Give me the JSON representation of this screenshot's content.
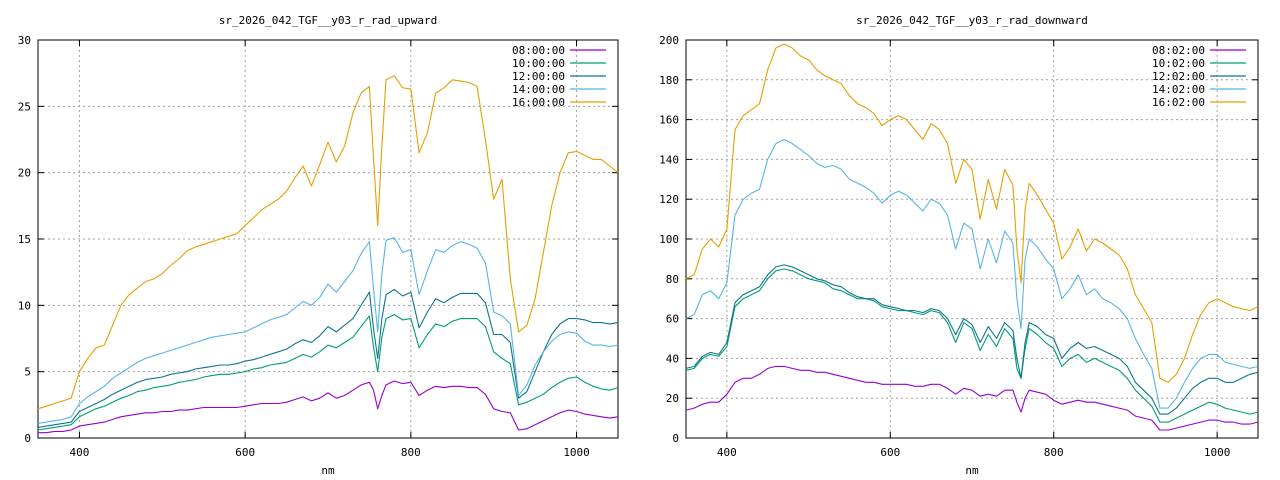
{
  "chart_data": [
    {
      "type": "line",
      "title": "sr_2026_042_TGF__y03_r_rad_upward",
      "xlabel": "nm",
      "ylabel": "",
      "xlim": [
        350,
        1050
      ],
      "ylim": [
        0,
        30
      ],
      "xticks": [
        400,
        600,
        800,
        1000
      ],
      "yticks": [
        0,
        5,
        10,
        15,
        20,
        25,
        30
      ],
      "grid": true,
      "legend_position": "top-right",
      "x": [
        350,
        360,
        370,
        380,
        390,
        400,
        410,
        420,
        430,
        440,
        450,
        460,
        470,
        480,
        490,
        500,
        510,
        520,
        530,
        540,
        550,
        560,
        570,
        580,
        590,
        600,
        610,
        620,
        630,
        640,
        650,
        660,
        670,
        680,
        690,
        700,
        710,
        720,
        730,
        740,
        750,
        755,
        760,
        765,
        770,
        780,
        790,
        800,
        810,
        820,
        830,
        840,
        850,
        860,
        870,
        880,
        890,
        900,
        910,
        920,
        930,
        940,
        950,
        960,
        970,
        980,
        990,
        1000,
        1010,
        1020,
        1030,
        1040,
        1050
      ],
      "series": [
        {
          "name": "08:00:00",
          "color": "#9400d3",
          "values": [
            0.4,
            0.4,
            0.5,
            0.5,
            0.6,
            0.9,
            1.0,
            1.1,
            1.2,
            1.4,
            1.6,
            1.7,
            1.8,
            1.9,
            1.9,
            2.0,
            2.0,
            2.1,
            2.1,
            2.2,
            2.3,
            2.3,
            2.3,
            2.3,
            2.3,
            2.4,
            2.5,
            2.6,
            2.6,
            2.6,
            2.7,
            2.9,
            3.1,
            2.8,
            3.0,
            3.4,
            3.0,
            3.2,
            3.6,
            4.0,
            4.2,
            3.6,
            2.2,
            3.2,
            4.0,
            4.3,
            4.1,
            4.2,
            3.2,
            3.6,
            3.9,
            3.8,
            3.9,
            3.9,
            3.8,
            3.8,
            3.3,
            2.2,
            2.0,
            1.9,
            0.6,
            0.7,
            1.0,
            1.3,
            1.6,
            1.9,
            2.1,
            2.0,
            1.8,
            1.7,
            1.6,
            1.5,
            1.6
          ]
        },
        {
          "name": "10:00:00",
          "color": "#009e73",
          "values": [
            0.6,
            0.7,
            0.8,
            0.9,
            1.0,
            1.6,
            1.9,
            2.2,
            2.4,
            2.7,
            3.0,
            3.2,
            3.5,
            3.6,
            3.8,
            3.9,
            4.0,
            4.2,
            4.3,
            4.4,
            4.6,
            4.7,
            4.8,
            4.8,
            4.9,
            5.0,
            5.2,
            5.3,
            5.5,
            5.6,
            5.7,
            6.0,
            6.3,
            6.1,
            6.5,
            7.0,
            6.8,
            7.2,
            7.6,
            8.4,
            9.2,
            6.8,
            5.0,
            7.6,
            9.0,
            9.3,
            8.9,
            9.0,
            6.8,
            7.8,
            8.6,
            8.4,
            8.8,
            9.0,
            9.0,
            9.0,
            8.4,
            6.5,
            6.0,
            5.6,
            2.5,
            2.7,
            3.0,
            3.3,
            3.8,
            4.2,
            4.5,
            4.6,
            4.2,
            3.9,
            3.7,
            3.6,
            3.8
          ]
        },
        {
          "name": "12:00:00",
          "color": "#0e7490",
          "values": [
            0.8,
            0.9,
            1.0,
            1.1,
            1.2,
            2.0,
            2.3,
            2.6,
            2.9,
            3.3,
            3.6,
            3.9,
            4.2,
            4.4,
            4.5,
            4.6,
            4.8,
            4.9,
            5.0,
            5.2,
            5.3,
            5.4,
            5.5,
            5.5,
            5.6,
            5.8,
            5.9,
            6.1,
            6.3,
            6.5,
            6.7,
            7.1,
            7.4,
            7.2,
            7.7,
            8.4,
            8.0,
            8.5,
            9.0,
            10.0,
            11.0,
            8.2,
            6.0,
            9.0,
            10.8,
            11.2,
            10.7,
            11.0,
            8.3,
            9.5,
            10.5,
            10.2,
            10.6,
            10.9,
            10.9,
            10.9,
            10.2,
            7.8,
            7.8,
            7.2,
            3.0,
            3.5,
            5.0,
            6.5,
            7.8,
            8.6,
            9.0,
            9.0,
            8.9,
            8.7,
            8.7,
            8.6,
            8.7
          ]
        },
        {
          "name": "14:00:00",
          "color": "#56b4e9",
          "values": [
            1.1,
            1.2,
            1.3,
            1.4,
            1.6,
            2.6,
            3.1,
            3.5,
            3.9,
            4.5,
            4.9,
            5.3,
            5.7,
            6.0,
            6.2,
            6.4,
            6.6,
            6.8,
            7.0,
            7.2,
            7.4,
            7.6,
            7.7,
            7.8,
            7.9,
            8.0,
            8.3,
            8.6,
            8.9,
            9.1,
            9.3,
            9.8,
            10.3,
            10.0,
            10.6,
            11.6,
            11.0,
            11.8,
            12.6,
            13.9,
            14.8,
            11.2,
            8.0,
            12.4,
            14.9,
            15.1,
            14.0,
            14.2,
            10.8,
            12.6,
            14.2,
            14.0,
            14.5,
            14.8,
            14.6,
            14.3,
            13.2,
            9.5,
            9.2,
            8.6,
            3.2,
            4.0,
            5.5,
            6.5,
            7.3,
            7.8,
            8.0,
            7.9,
            7.3,
            7.0,
            7.0,
            6.9,
            7.0
          ]
        },
        {
          "name": "16:00:00",
          "color": "#e69f00",
          "values": [
            2.2,
            2.4,
            2.6,
            2.8,
            3.0,
            5.0,
            6.0,
            6.8,
            7.0,
            8.5,
            10.0,
            10.8,
            11.3,
            11.8,
            12.0,
            12.4,
            13.0,
            13.5,
            14.1,
            14.4,
            14.6,
            14.8,
            15.0,
            15.2,
            15.4,
            16.0,
            16.6,
            17.2,
            17.6,
            18.0,
            18.6,
            19.6,
            20.5,
            19.0,
            20.6,
            22.3,
            20.8,
            22.0,
            24.5,
            26.0,
            26.5,
            21.0,
            16.0,
            22.0,
            27.0,
            27.3,
            26.4,
            26.3,
            21.5,
            23.0,
            26.0,
            26.4,
            27.0,
            26.9,
            26.8,
            26.5,
            22.5,
            18.0,
            19.5,
            12.0,
            8.0,
            8.5,
            10.5,
            14.0,
            17.5,
            20.0,
            21.5,
            21.6,
            21.3,
            21.0,
            21.0,
            20.5,
            20.0
          ]
        }
      ]
    },
    {
      "type": "line",
      "title": "sr_2026_042_TGF__y03_r_rad_downward",
      "xlabel": "nm",
      "ylabel": "",
      "xlim": [
        350,
        1050
      ],
      "ylim": [
        0,
        200
      ],
      "xticks": [
        400,
        600,
        800,
        1000
      ],
      "yticks": [
        0,
        20,
        40,
        60,
        80,
        100,
        120,
        140,
        160,
        180,
        200
      ],
      "grid": true,
      "legend_position": "top-right",
      "x": [
        350,
        360,
        370,
        380,
        390,
        400,
        410,
        420,
        430,
        440,
        450,
        460,
        470,
        480,
        490,
        500,
        510,
        520,
        530,
        540,
        550,
        560,
        570,
        580,
        590,
        600,
        610,
        620,
        630,
        640,
        650,
        660,
        670,
        680,
        690,
        700,
        710,
        720,
        730,
        740,
        750,
        755,
        760,
        765,
        770,
        780,
        790,
        800,
        810,
        820,
        830,
        840,
        850,
        860,
        870,
        880,
        890,
        900,
        910,
        920,
        930,
        940,
        950,
        960,
        970,
        980,
        990,
        1000,
        1010,
        1020,
        1030,
        1040,
        1050
      ],
      "series": [
        {
          "name": "08:02:00",
          "color": "#9400d3",
          "values": [
            14,
            15,
            17,
            18,
            18,
            22,
            28,
            30,
            30,
            32,
            35,
            36,
            36,
            35,
            34,
            34,
            33,
            33,
            32,
            31,
            30,
            29,
            28,
            28,
            27,
            27,
            27,
            27,
            26,
            26,
            27,
            27,
            25,
            22,
            25,
            24,
            21,
            22,
            21,
            24,
            24,
            18,
            13,
            20,
            24,
            23,
            22,
            19,
            17,
            18,
            19,
            18,
            18,
            17,
            16,
            15,
            14,
            11,
            10,
            9,
            4,
            4,
            5,
            6,
            7,
            8,
            9,
            9,
            8,
            8,
            7,
            7,
            8
          ]
        },
        {
          "name": "10:02:00",
          "color": "#009e73",
          "values": [
            34,
            35,
            40,
            42,
            41,
            46,
            66,
            70,
            72,
            74,
            80,
            84,
            85,
            84,
            82,
            80,
            79,
            78,
            75,
            74,
            72,
            70,
            70,
            69,
            66,
            65,
            64,
            64,
            63,
            62,
            64,
            63,
            58,
            48,
            58,
            55,
            44,
            52,
            46,
            55,
            50,
            35,
            30,
            45,
            55,
            52,
            48,
            45,
            36,
            40,
            42,
            38,
            40,
            38,
            36,
            34,
            30,
            24,
            20,
            16,
            8,
            8,
            10,
            12,
            14,
            16,
            18,
            17,
            15,
            14,
            13,
            12,
            13
          ]
        },
        {
          "name": "12:02:00",
          "color": "#0e7490",
          "values": [
            35,
            36,
            41,
            43,
            42,
            48,
            68,
            72,
            74,
            76,
            82,
            86,
            87,
            86,
            84,
            82,
            80,
            79,
            77,
            76,
            73,
            71,
            70,
            70,
            67,
            66,
            65,
            64,
            64,
            63,
            65,
            64,
            60,
            52,
            60,
            57,
            48,
            56,
            50,
            58,
            54,
            40,
            30,
            48,
            58,
            56,
            52,
            50,
            40,
            45,
            48,
            45,
            46,
            44,
            42,
            40,
            36,
            28,
            24,
            20,
            12,
            12,
            15,
            20,
            25,
            28,
            30,
            30,
            28,
            28,
            30,
            32,
            33
          ]
        },
        {
          "name": "14:02:00",
          "color": "#56b4e9",
          "values": [
            60,
            62,
            72,
            74,
            70,
            78,
            112,
            120,
            123,
            125,
            140,
            148,
            150,
            148,
            145,
            142,
            138,
            136,
            137,
            135,
            130,
            128,
            126,
            123,
            118,
            122,
            124,
            122,
            118,
            114,
            120,
            118,
            112,
            95,
            108,
            105,
            85,
            100,
            88,
            104,
            98,
            70,
            55,
            90,
            100,
            96,
            90,
            85,
            70,
            75,
            82,
            72,
            75,
            70,
            68,
            65,
            60,
            50,
            42,
            35,
            15,
            15,
            20,
            28,
            35,
            40,
            42,
            42,
            38,
            37,
            36,
            35,
            36
          ]
        },
        {
          "name": "16:02:00",
          "color": "#e69f00",
          "values": [
            80,
            82,
            95,
            100,
            96,
            105,
            155,
            162,
            165,
            168,
            185,
            196,
            198,
            196,
            192,
            190,
            185,
            182,
            180,
            178,
            172,
            168,
            166,
            163,
            157,
            160,
            162,
            160,
            155,
            150,
            158,
            155,
            148,
            128,
            140,
            135,
            110,
            130,
            115,
            135,
            127,
            95,
            78,
            115,
            128,
            122,
            115,
            108,
            90,
            96,
            105,
            94,
            100,
            98,
            95,
            92,
            85,
            72,
            65,
            58,
            30,
            28,
            32,
            40,
            52,
            62,
            68,
            70,
            68,
            66,
            65,
            64,
            66
          ]
        }
      ]
    }
  ]
}
